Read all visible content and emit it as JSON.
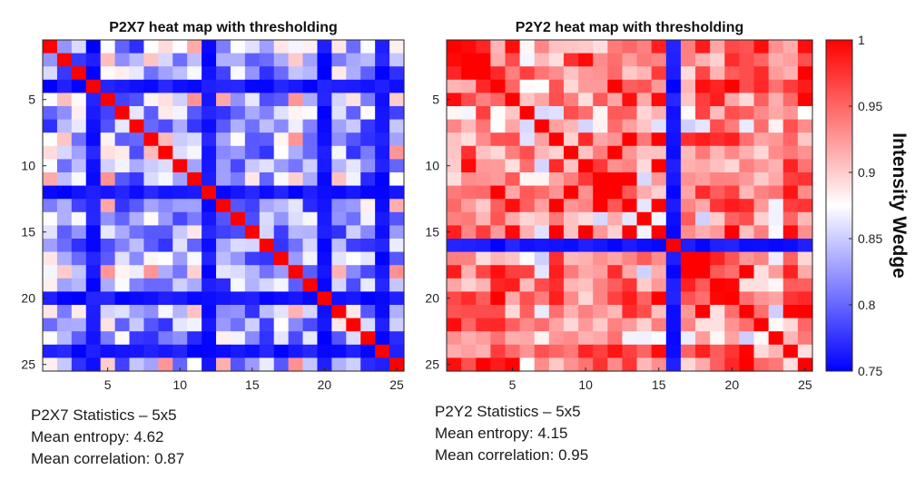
{
  "colors": {
    "low": "#0000ff",
    "mid": "#ffffff",
    "high": "#ff0000",
    "axis": "#262626"
  },
  "chart_data": [
    {
      "type": "heatmap",
      "title": "P2X7 heat map with thresholding",
      "xlabel": "",
      "ylabel": "",
      "size": 25,
      "x_ticks": [
        5,
        10,
        15,
        20,
        25
      ],
      "y_ticks": [
        5,
        10,
        15,
        20,
        25
      ],
      "clim": [
        0.75,
        1
      ],
      "dark_rows_cols": [
        4,
        12,
        20,
        24
      ],
      "mid_rows_cols": [
        3,
        6,
        7,
        10,
        14,
        15,
        16,
        17,
        19,
        22,
        23
      ],
      "diagonal_value": 1,
      "base_value": 0.87,
      "note_values": "cells off the diagonal mostly in 0.75-0.95 range"
    },
    {
      "type": "heatmap",
      "title": "P2Y2 heat map with thresholding",
      "xlabel": "",
      "ylabel": "",
      "size": 25,
      "x_ticks": [
        5,
        10,
        15,
        20,
        25
      ],
      "y_ticks": [
        5,
        10,
        15,
        20,
        25
      ],
      "clim": [
        0.75,
        1
      ],
      "dark_rows_cols": [
        16
      ],
      "mid_rows_cols": [
        6,
        7,
        14,
        23
      ],
      "diagonal_value": 1,
      "base_value": 0.95
    }
  ],
  "colorbar": {
    "label": "Intensity Wedge",
    "ticks": [
      0.75,
      0.8,
      0.85,
      0.9,
      0.95,
      1
    ],
    "tick_labels": [
      "0.75",
      "0.8",
      "0.85",
      "0.9",
      "0.95",
      "1"
    ]
  },
  "stats_left": {
    "line1": "P2X7 Statistics – 5x5",
    "line2": "Mean entropy: 4.62",
    "line3": "Mean correlation: 0.87"
  },
  "stats_right": {
    "line1": "P2Y2 Statistics – 5x5",
    "line2": "Mean entropy: 4.15",
    "line3": "Mean correlation: 0.95"
  }
}
